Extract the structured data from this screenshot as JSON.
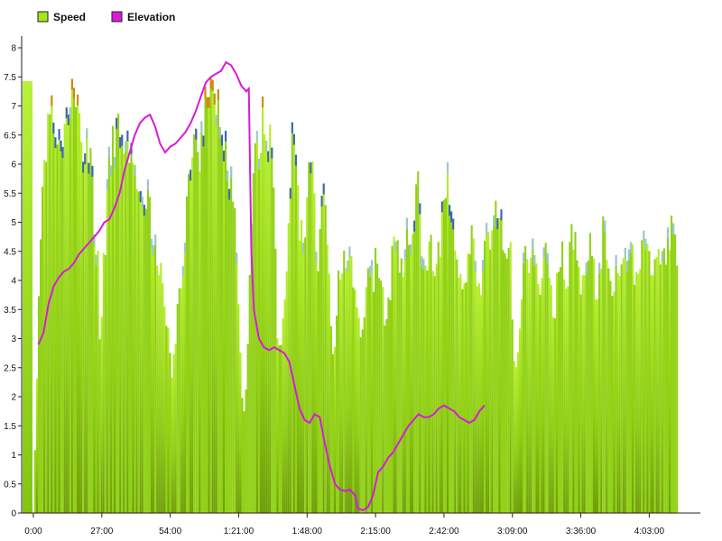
{
  "chart_data": {
    "type": "bar",
    "title": "",
    "xlabel": "",
    "ylabel": "",
    "ylim": [
      0,
      8.2
    ],
    "x_range_minutes": [
      0,
      260
    ],
    "grid": false,
    "legend_placement": "top-left",
    "legend": [
      {
        "name": "Speed",
        "color": "#a3e61c"
      },
      {
        "name": "Elevation",
        "color": "#d81adb"
      }
    ],
    "y_ticks": [
      {
        "value": 0,
        "label": "0"
      },
      {
        "value": 0.5,
        "label": "0.5"
      },
      {
        "value": 1,
        "label": "1"
      },
      {
        "value": 1.5,
        "label": "1.5"
      },
      {
        "value": 2,
        "label": "2"
      },
      {
        "value": 2.5,
        "label": "2.5"
      },
      {
        "value": 3,
        "label": "3"
      },
      {
        "value": 3.5,
        "label": "3.5"
      },
      {
        "value": 4,
        "label": "4"
      },
      {
        "value": 4.5,
        "label": "4.5"
      },
      {
        "value": 5,
        "label": "5"
      },
      {
        "value": 5.5,
        "label": "5.5"
      },
      {
        "value": 6,
        "label": "6"
      },
      {
        "value": 6.5,
        "label": "6.5"
      },
      {
        "value": 7,
        "label": "7"
      },
      {
        "value": 7.5,
        "label": "7.5"
      },
      {
        "value": 8,
        "label": "8"
      }
    ],
    "x_ticks": [
      {
        "minutes": 0,
        "label": "0:00"
      },
      {
        "minutes": 27,
        "label": "27:00"
      },
      {
        "minutes": 54,
        "label": "54:00"
      },
      {
        "minutes": 81,
        "label": "1:21:00"
      },
      {
        "minutes": 108,
        "label": "1:48:00"
      },
      {
        "minutes": 135,
        "label": "2:15:00"
      },
      {
        "minutes": 162,
        "label": "2:42:00"
      },
      {
        "minutes": 189,
        "label": "3:09:00"
      },
      {
        "minutes": 216,
        "label": "3:36:00"
      },
      {
        "minutes": 243,
        "label": "4:03:00"
      }
    ],
    "speed_envelope": [
      [
        0,
        0.7
      ],
      [
        2.5,
        5.1
      ],
      [
        4,
        6.7
      ],
      [
        6,
        7.0
      ],
      [
        8,
        7.3
      ],
      [
        10,
        6.5
      ],
      [
        12,
        7.2
      ],
      [
        14,
        7.55
      ],
      [
        16,
        7.25
      ],
      [
        18,
        7.0
      ],
      [
        20,
        6.6
      ],
      [
        22,
        6.3
      ],
      [
        23,
        5.9
      ],
      [
        24,
        5.2
      ],
      [
        25,
        4.8
      ],
      [
        26,
        3.0
      ],
      [
        27,
        4.2
      ],
      [
        28,
        5.0
      ],
      [
        29,
        5.9
      ],
      [
        30,
        6.5
      ],
      [
        32,
        7.0
      ],
      [
        33,
        6.9
      ],
      [
        34,
        6.5
      ],
      [
        36,
        6.9
      ],
      [
        38,
        6.4
      ],
      [
        40,
        6.0
      ],
      [
        42,
        5.6
      ],
      [
        44,
        5.9
      ],
      [
        46,
        5.4
      ],
      [
        48,
        4.9
      ],
      [
        50,
        4.2
      ],
      [
        52,
        3.6
      ],
      [
        54,
        2.5
      ],
      [
        55,
        2.8
      ],
      [
        57,
        4.0
      ],
      [
        59,
        4.7
      ],
      [
        61,
        5.9
      ],
      [
        63,
        6.7
      ],
      [
        65,
        6.5
      ],
      [
        67,
        7.2
      ],
      [
        69,
        7.5
      ],
      [
        71,
        7.4
      ],
      [
        73,
        7.2
      ],
      [
        75,
        6.9
      ],
      [
        77,
        6.2
      ],
      [
        79,
        5.6
      ],
      [
        80,
        4.5
      ],
      [
        81,
        3.2
      ],
      [
        82,
        2.2
      ],
      [
        83,
        1.7
      ],
      [
        84,
        2.9
      ],
      [
        85,
        4.4
      ],
      [
        86,
        5.4
      ],
      [
        87,
        6.3
      ],
      [
        89,
        6.9
      ],
      [
        91,
        7.2
      ],
      [
        93,
        6.9
      ],
      [
        94,
        6.5
      ],
      [
        95,
        5.0
      ],
      [
        96,
        3.2
      ],
      [
        97,
        2.8
      ],
      [
        98,
        3.5
      ],
      [
        99,
        4.2
      ],
      [
        100,
        5.0
      ],
      [
        101,
        6.2
      ],
      [
        102,
        6.9
      ],
      [
        103,
        6.3
      ],
      [
        104,
        5.5
      ],
      [
        105,
        5.2
      ],
      [
        106,
        5.0
      ],
      [
        107,
        5.2
      ],
      [
        108,
        5.8
      ],
      [
        109,
        6.6
      ],
      [
        110,
        5.9
      ],
      [
        111,
        5.2
      ],
      [
        112,
        4.7
      ],
      [
        113,
        5.0
      ],
      [
        114,
        6.0
      ],
      [
        115,
        5.5
      ],
      [
        116,
        4.5
      ],
      [
        117,
        3.6
      ],
      [
        118,
        2.7
      ],
      [
        119,
        3.2
      ],
      [
        120,
        4.3
      ],
      [
        121,
        4.5
      ],
      [
        122,
        4.7
      ],
      [
        123,
        4.5
      ],
      [
        124,
        5.0
      ],
      [
        125,
        4.6
      ],
      [
        126,
        4.3
      ],
      [
        127,
        4.1
      ],
      [
        128,
        3.6
      ],
      [
        129,
        3.0
      ],
      [
        130,
        3.4
      ],
      [
        131,
        4.0
      ],
      [
        132,
        4.5
      ],
      [
        133,
        4.3
      ],
      [
        134,
        4.1
      ],
      [
        135,
        4.8
      ],
      [
        136,
        4.5
      ],
      [
        137,
        4.0
      ],
      [
        138,
        3.7
      ],
      [
        139,
        3.5
      ],
      [
        140,
        3.9
      ],
      [
        141,
        4.4
      ],
      [
        142,
        5.0
      ],
      [
        143,
        4.8
      ],
      [
        144,
        4.5
      ],
      [
        145,
        4.3
      ],
      [
        146,
        4.6
      ],
      [
        147,
        5.3
      ],
      [
        148,
        4.9
      ],
      [
        150,
        5.3
      ],
      [
        151,
        6.1
      ],
      [
        152,
        5.6
      ],
      [
        153,
        4.9
      ],
      [
        154,
        4.7
      ],
      [
        155,
        4.5
      ],
      [
        156,
        4.8
      ],
      [
        157,
        4.7
      ],
      [
        158,
        4.6
      ],
      [
        159,
        4.5
      ],
      [
        160,
        4.9
      ],
      [
        161,
        5.5
      ],
      [
        162,
        5.9
      ],
      [
        163,
        6.2
      ],
      [
        164,
        5.6
      ],
      [
        165,
        5.4
      ],
      [
        166,
        5.0
      ],
      [
        167,
        4.6
      ],
      [
        168,
        4.4
      ],
      [
        169,
        4.0
      ],
      [
        170,
        4.3
      ],
      [
        171,
        4.7
      ],
      [
        172,
        5.1
      ],
      [
        173,
        4.8
      ],
      [
        174,
        4.6
      ],
      [
        175,
        4.3
      ],
      [
        176,
        4.0
      ],
      [
        177,
        4.5
      ],
      [
        178,
        4.9
      ],
      [
        179,
        5.1
      ],
      [
        180,
        4.8
      ],
      [
        181,
        4.9
      ],
      [
        182,
        5.3
      ],
      [
        183,
        5.2
      ],
      [
        184,
        5.5
      ],
      [
        185,
        4.9
      ],
      [
        186,
        5.1
      ],
      [
        187,
        4.8
      ],
      [
        188,
        4.6
      ],
      [
        189,
        3.0
      ],
      [
        190,
        2.8
      ],
      [
        191,
        3.0
      ],
      [
        192,
        3.7
      ],
      [
        193,
        4.5
      ],
      [
        194,
        5.0
      ],
      [
        195,
        4.7
      ],
      [
        196,
        4.5
      ],
      [
        197,
        4.8
      ],
      [
        198,
        4.6
      ],
      [
        199,
        4.3
      ],
      [
        200,
        4.0
      ],
      [
        201,
        4.5
      ],
      [
        202,
        4.8
      ],
      [
        203,
        4.5
      ],
      [
        204,
        4.2
      ],
      [
        205,
        3.5
      ],
      [
        206,
        4.0
      ],
      [
        207,
        4.4
      ],
      [
        208,
        4.9
      ],
      [
        209,
        4.5
      ],
      [
        210,
        4.0
      ],
      [
        211,
        4.6
      ],
      [
        212,
        5.0
      ],
      [
        213,
        5.2
      ],
      [
        214,
        4.7
      ],
      [
        215,
        4.4
      ],
      [
        216,
        4.2
      ],
      [
        217,
        4.5
      ],
      [
        218,
        4.8
      ],
      [
        219,
        5.0
      ],
      [
        220,
        4.5
      ],
      [
        221,
        4.3
      ],
      [
        222,
        4.0
      ],
      [
        223,
        4.5
      ],
      [
        224,
        4.9
      ],
      [
        225,
        5.2
      ],
      [
        226,
        4.6
      ],
      [
        227,
        4.3
      ],
      [
        228,
        4.0
      ],
      [
        229,
        4.4
      ],
      [
        230,
        4.7
      ],
      [
        231,
        4.6
      ],
      [
        232,
        4.3
      ],
      [
        233,
        4.5
      ],
      [
        234,
        4.8
      ],
      [
        235,
        5.0
      ],
      [
        236,
        4.6
      ],
      [
        237,
        4.4
      ],
      [
        238,
        4.2
      ],
      [
        239,
        4.4
      ],
      [
        240,
        4.7
      ],
      [
        241,
        5.0
      ],
      [
        242,
        4.8
      ],
      [
        243,
        4.6
      ],
      [
        244,
        4.5
      ],
      [
        245,
        4.3
      ],
      [
        246,
        4.5
      ],
      [
        247,
        4.6
      ],
      [
        248,
        4.4
      ],
      [
        249,
        4.7
      ],
      [
        250,
        5.0
      ],
      [
        251,
        5.1
      ],
      [
        252,
        5.0
      ],
      [
        253,
        4.9
      ],
      [
        254,
        4.2
      ]
    ],
    "elevation": [
      [
        2,
        2.9
      ],
      [
        4,
        3.1
      ],
      [
        6,
        3.6
      ],
      [
        8,
        3.9
      ],
      [
        10,
        4.05
      ],
      [
        12,
        4.15
      ],
      [
        14,
        4.2
      ],
      [
        16,
        4.3
      ],
      [
        18,
        4.45
      ],
      [
        20,
        4.55
      ],
      [
        22,
        4.65
      ],
      [
        24,
        4.75
      ],
      [
        26,
        4.85
      ],
      [
        28,
        5.0
      ],
      [
        30,
        5.05
      ],
      [
        32,
        5.25
      ],
      [
        34,
        5.5
      ],
      [
        36,
        5.9
      ],
      [
        38,
        6.2
      ],
      [
        40,
        6.5
      ],
      [
        42,
        6.7
      ],
      [
        44,
        6.8
      ],
      [
        46,
        6.85
      ],
      [
        48,
        6.65
      ],
      [
        50,
        6.35
      ],
      [
        52,
        6.2
      ],
      [
        54,
        6.3
      ],
      [
        56,
        6.35
      ],
      [
        58,
        6.45
      ],
      [
        60,
        6.55
      ],
      [
        62,
        6.7
      ],
      [
        64,
        6.9
      ],
      [
        66,
        7.15
      ],
      [
        68,
        7.4
      ],
      [
        70,
        7.5
      ],
      [
        72,
        7.55
      ],
      [
        74,
        7.6
      ],
      [
        76,
        7.75
      ],
      [
        78,
        7.7
      ],
      [
        80,
        7.55
      ],
      [
        82,
        7.35
      ],
      [
        84,
        7.25
      ],
      [
        85,
        7.3
      ],
      [
        86,
        4.5
      ],
      [
        87,
        3.5
      ],
      [
        89,
        3.0
      ],
      [
        91,
        2.85
      ],
      [
        93,
        2.8
      ],
      [
        95,
        2.85
      ],
      [
        97,
        2.8
      ],
      [
        99,
        2.75
      ],
      [
        101,
        2.6
      ],
      [
        103,
        2.2
      ],
      [
        105,
        1.8
      ],
      [
        107,
        1.6
      ],
      [
        109,
        1.55
      ],
      [
        111,
        1.7
      ],
      [
        113,
        1.65
      ],
      [
        115,
        1.2
      ],
      [
        117,
        0.8
      ],
      [
        119,
        0.5
      ],
      [
        121,
        0.4
      ],
      [
        123,
        0.38
      ],
      [
        125,
        0.4
      ],
      [
        127,
        0.3
      ],
      [
        128,
        0.08
      ],
      [
        130,
        0.05
      ],
      [
        132,
        0.1
      ],
      [
        134,
        0.3
      ],
      [
        136,
        0.7
      ],
      [
        138,
        0.8
      ],
      [
        140,
        0.95
      ],
      [
        142,
        1.05
      ],
      [
        144,
        1.2
      ],
      [
        146,
        1.35
      ],
      [
        148,
        1.5
      ],
      [
        150,
        1.6
      ],
      [
        152,
        1.7
      ],
      [
        154,
        1.65
      ],
      [
        156,
        1.65
      ],
      [
        158,
        1.7
      ],
      [
        160,
        1.8
      ],
      [
        162,
        1.85
      ],
      [
        164,
        1.8
      ],
      [
        166,
        1.75
      ],
      [
        168,
        1.65
      ],
      [
        170,
        1.6
      ],
      [
        172,
        1.55
      ],
      [
        174,
        1.6
      ],
      [
        176,
        1.75
      ],
      [
        178,
        1.85
      ]
    ]
  }
}
